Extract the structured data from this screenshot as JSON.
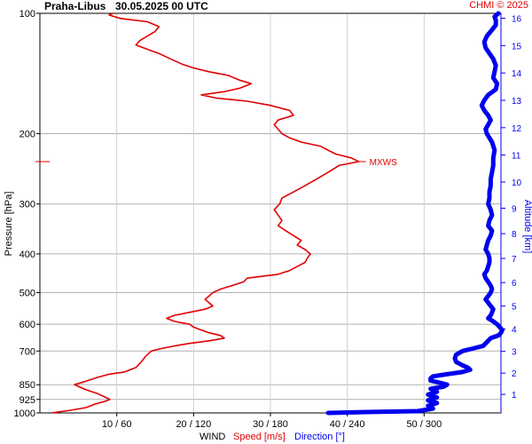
{
  "header": {
    "station": "Praha-Libus",
    "datetime": "30.05.2025 00 UTC",
    "credit": "CHMI © 2025"
  },
  "chart_data": {
    "type": "line",
    "y_left": {
      "label": "Pressure [hPa]",
      "scale": "log",
      "range": [
        1000,
        100
      ],
      "ticks": [
        100,
        200,
        300,
        400,
        500,
        600,
        700,
        850,
        925,
        1000
      ],
      "grid": true
    },
    "y_right": {
      "label": "Altitude [km]",
      "ticks": [
        1,
        2,
        3,
        4,
        5,
        6,
        7,
        8,
        9,
        10,
        11,
        12,
        13,
        14,
        15,
        16
      ]
    },
    "x_axis": {
      "ticks": [
        "10 / 60",
        "20 / 120",
        "30 / 180",
        "40 / 240",
        "50 / 300"
      ],
      "speed_range": [
        0,
        60
      ],
      "direction_range": [
        0,
        360
      ],
      "grid": true,
      "legend": {
        "prefix": "WIND",
        "speed": "Speed [m/s]",
        "direction": "Direction [°]"
      }
    },
    "annotation": {
      "text": "MXWS",
      "pressure": 235,
      "speed": 41.5
    },
    "colors": {
      "speed": "#e00000",
      "direction": "#0000ee",
      "grid": "#b0b0b0"
    },
    "series": [
      {
        "name": "Speed [m/s]",
        "unit": "m/s",
        "points": [
          [
            1000,
            1.5
          ],
          [
            985,
            4
          ],
          [
            970,
            6
          ],
          [
            950,
            7.2
          ],
          [
            935,
            8.5
          ],
          [
            925,
            9.1
          ],
          [
            915,
            8.6
          ],
          [
            895,
            7.5
          ],
          [
            875,
            6
          ],
          [
            860,
            5.1
          ],
          [
            850,
            4.5
          ],
          [
            835,
            5.8
          ],
          [
            815,
            7.5
          ],
          [
            800,
            9
          ],
          [
            790,
            11
          ],
          [
            770,
            12.5
          ],
          [
            745,
            13.2
          ],
          [
            720,
            13.8
          ],
          [
            700,
            14.5
          ],
          [
            690,
            15.8
          ],
          [
            680,
            17.5
          ],
          [
            670,
            19.5
          ],
          [
            660,
            22
          ],
          [
            650,
            24
          ],
          [
            640,
            23.5
          ],
          [
            630,
            22
          ],
          [
            620,
            21
          ],
          [
            610,
            20
          ],
          [
            600,
            19.5
          ],
          [
            590,
            17.5
          ],
          [
            580,
            16.5
          ],
          [
            570,
            17.5
          ],
          [
            560,
            19.5
          ],
          [
            550,
            21.5
          ],
          [
            540,
            22.5
          ],
          [
            530,
            22
          ],
          [
            520,
            21.5
          ],
          [
            510,
            22
          ],
          [
            500,
            22.5
          ],
          [
            490,
            23.5
          ],
          [
            480,
            25
          ],
          [
            470,
            26.5
          ],
          [
            460,
            27
          ],
          [
            455,
            29
          ],
          [
            450,
            31
          ],
          [
            440,
            32.5
          ],
          [
            430,
            33.5
          ],
          [
            420,
            34.5
          ],
          [
            410,
            34.8
          ],
          [
            400,
            35.2
          ],
          [
            390,
            34.5
          ],
          [
            380,
            33.5
          ],
          [
            370,
            34
          ],
          [
            360,
            33
          ],
          [
            350,
            32
          ],
          [
            340,
            31
          ],
          [
            330,
            31.5
          ],
          [
            320,
            31
          ],
          [
            310,
            30.5
          ],
          [
            300,
            31.2
          ],
          [
            290,
            31.5
          ],
          [
            280,
            33
          ],
          [
            270,
            34.5
          ],
          [
            260,
            36
          ],
          [
            250,
            37.5
          ],
          [
            240,
            39
          ],
          [
            235,
            41.5
          ],
          [
            230,
            40.5
          ],
          [
            225,
            38.5
          ],
          [
            220,
            37.5
          ],
          [
            215,
            36.5
          ],
          [
            210,
            34
          ],
          [
            205,
            32.5
          ],
          [
            200,
            31.5
          ],
          [
            195,
            31
          ],
          [
            190,
            30.5
          ],
          [
            185,
            31
          ],
          [
            180,
            33
          ],
          [
            175,
            32.5
          ],
          [
            170,
            30
          ],
          [
            166,
            27
          ],
          [
            163,
            23
          ],
          [
            160,
            21
          ],
          [
            157,
            24
          ],
          [
            154,
            26
          ],
          [
            150,
            27.5
          ],
          [
            147,
            26
          ],
          [
            143,
            24.5
          ],
          [
            140,
            22
          ],
          [
            137,
            20
          ],
          [
            134,
            18.5
          ],
          [
            130,
            17
          ],
          [
            126,
            15.5
          ],
          [
            123,
            14
          ],
          [
            120,
            12.5
          ],
          [
            117,
            13
          ],
          [
            114,
            14
          ],
          [
            111,
            15
          ],
          [
            108,
            15.5
          ],
          [
            105,
            14
          ],
          [
            103,
            10.5
          ],
          [
            101,
            9
          ],
          [
            100,
            9.5
          ]
        ]
      },
      {
        "name": "Direction [°]",
        "unit": "deg",
        "points": [
          [
            1000,
            225
          ],
          [
            995,
            255
          ],
          [
            990,
            295
          ],
          [
            975,
            307
          ],
          [
            960,
            303
          ],
          [
            945,
            310
          ],
          [
            930,
            303
          ],
          [
            915,
            310
          ],
          [
            900,
            303
          ],
          [
            885,
            310
          ],
          [
            870,
            305
          ],
          [
            860,
            315
          ],
          [
            850,
            318
          ],
          [
            840,
            312
          ],
          [
            830,
            305
          ],
          [
            820,
            305
          ],
          [
            810,
            307
          ],
          [
            800,
            318
          ],
          [
            790,
            330
          ],
          [
            780,
            336
          ],
          [
            770,
            334
          ],
          [
            760,
            330
          ],
          [
            745,
            325
          ],
          [
            730,
            324
          ],
          [
            715,
            325
          ],
          [
            700,
            330
          ],
          [
            690,
            338
          ],
          [
            680,
            346
          ],
          [
            670,
            348
          ],
          [
            660,
            350
          ],
          [
            650,
            352
          ],
          [
            640,
            358
          ],
          [
            630,
            360
          ],
          [
            620,
            361
          ],
          [
            610,
            359
          ],
          [
            600,
            357
          ],
          [
            590,
            354
          ],
          [
            580,
            350
          ],
          [
            570,
            352
          ],
          [
            560,
            353
          ],
          [
            550,
            354
          ],
          [
            540,
            352
          ],
          [
            530,
            350
          ],
          [
            520,
            348
          ],
          [
            510,
            350
          ],
          [
            500,
            352
          ],
          [
            490,
            353
          ],
          [
            480,
            352
          ],
          [
            470,
            350
          ],
          [
            460,
            348
          ],
          [
            450,
            347
          ],
          [
            440,
            349
          ],
          [
            430,
            350
          ],
          [
            420,
            351
          ],
          [
            410,
            351
          ],
          [
            400,
            350
          ],
          [
            390,
            348
          ],
          [
            380,
            349
          ],
          [
            370,
            350
          ],
          [
            360,
            352
          ],
          [
            350,
            353
          ],
          [
            340,
            350
          ],
          [
            330,
            351
          ],
          [
            320,
            353
          ],
          [
            310,
            352
          ],
          [
            300,
            350
          ],
          [
            290,
            351
          ],
          [
            280,
            351
          ],
          [
            270,
            352
          ],
          [
            260,
            352
          ],
          [
            250,
            353
          ],
          [
            240,
            354
          ],
          [
            230,
            354
          ],
          [
            220,
            355
          ],
          [
            210,
            353
          ],
          [
            205,
            351
          ],
          [
            200,
            349
          ],
          [
            195,
            348
          ],
          [
            190,
            350
          ],
          [
            185,
            352
          ],
          [
            180,
            350
          ],
          [
            175,
            347
          ],
          [
            170,
            345
          ],
          [
            165,
            347
          ],
          [
            160,
            350
          ],
          [
            155,
            356
          ],
          [
            150,
            357
          ],
          [
            145,
            354
          ],
          [
            140,
            355
          ],
          [
            135,
            356
          ],
          [
            130,
            354
          ],
          [
            126,
            351
          ],
          [
            122,
            348
          ],
          [
            118,
            347
          ],
          [
            114,
            349
          ],
          [
            110,
            353
          ],
          [
            107,
            356
          ],
          [
            104,
            356
          ],
          [
            102,
            355
          ],
          [
            100,
            358
          ]
        ]
      }
    ]
  }
}
